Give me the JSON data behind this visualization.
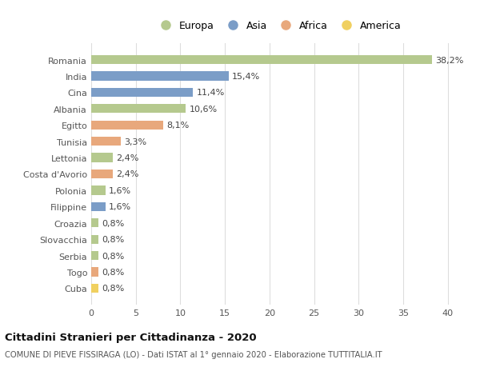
{
  "categories": [
    "Romania",
    "India",
    "Cina",
    "Albania",
    "Egitto",
    "Tunisia",
    "Lettonia",
    "Costa d'Avorio",
    "Polonia",
    "Filippine",
    "Croazia",
    "Slovacchia",
    "Serbia",
    "Togo",
    "Cuba"
  ],
  "values": [
    38.2,
    15.4,
    11.4,
    10.6,
    8.1,
    3.3,
    2.4,
    2.4,
    1.6,
    1.6,
    0.8,
    0.8,
    0.8,
    0.8,
    0.8
  ],
  "continents": [
    "Europa",
    "Asia",
    "Asia",
    "Europa",
    "Africa",
    "Africa",
    "Europa",
    "Africa",
    "Europa",
    "Asia",
    "Europa",
    "Europa",
    "Europa",
    "Africa",
    "America"
  ],
  "continent_colors": {
    "Europa": "#b5c98e",
    "Asia": "#7b9dc7",
    "Africa": "#e8a87c",
    "America": "#f0d060"
  },
  "legend_entries": [
    "Europa",
    "Asia",
    "Africa",
    "America"
  ],
  "title": "Cittadini Stranieri per Cittadinanza - 2020",
  "subtitle": "COMUNE DI PIEVE FISSIRAGA (LO) - Dati ISTAT al 1° gennaio 2020 - Elaborazione TUTTITALIA.IT",
  "xlim": [
    0,
    42
  ],
  "xticks": [
    0,
    5,
    10,
    15,
    20,
    25,
    30,
    35,
    40
  ],
  "background_color": "#ffffff",
  "grid_color": "#dddddd",
  "label_fontsize": 8,
  "tick_fontsize": 8,
  "bar_height": 0.55
}
